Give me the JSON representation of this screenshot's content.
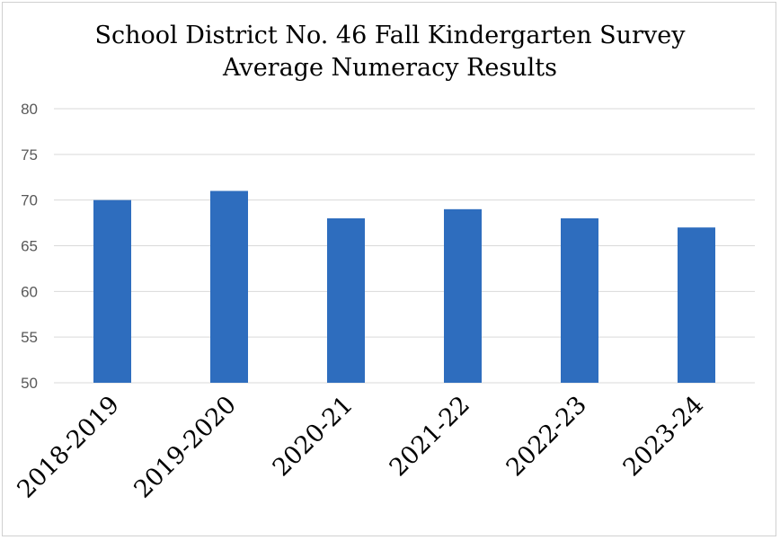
{
  "chart_data": {
    "type": "bar",
    "title": "School District No. 46 Fall Kindergarten Survey",
    "subtitle": "Average Numeracy Results",
    "categories": [
      "2018-2019",
      "2019-2020",
      "2020-21",
      "2021-22",
      "2022-23",
      "2023-24"
    ],
    "values": [
      70,
      71,
      68,
      69,
      68,
      67
    ],
    "ylim": [
      50,
      80
    ],
    "yticks": [
      "50",
      "55",
      "60",
      "65",
      "70",
      "75",
      "80"
    ],
    "grid": true,
    "bar_color": "#2E6DBE",
    "grid_color": "#D9D9D9"
  }
}
